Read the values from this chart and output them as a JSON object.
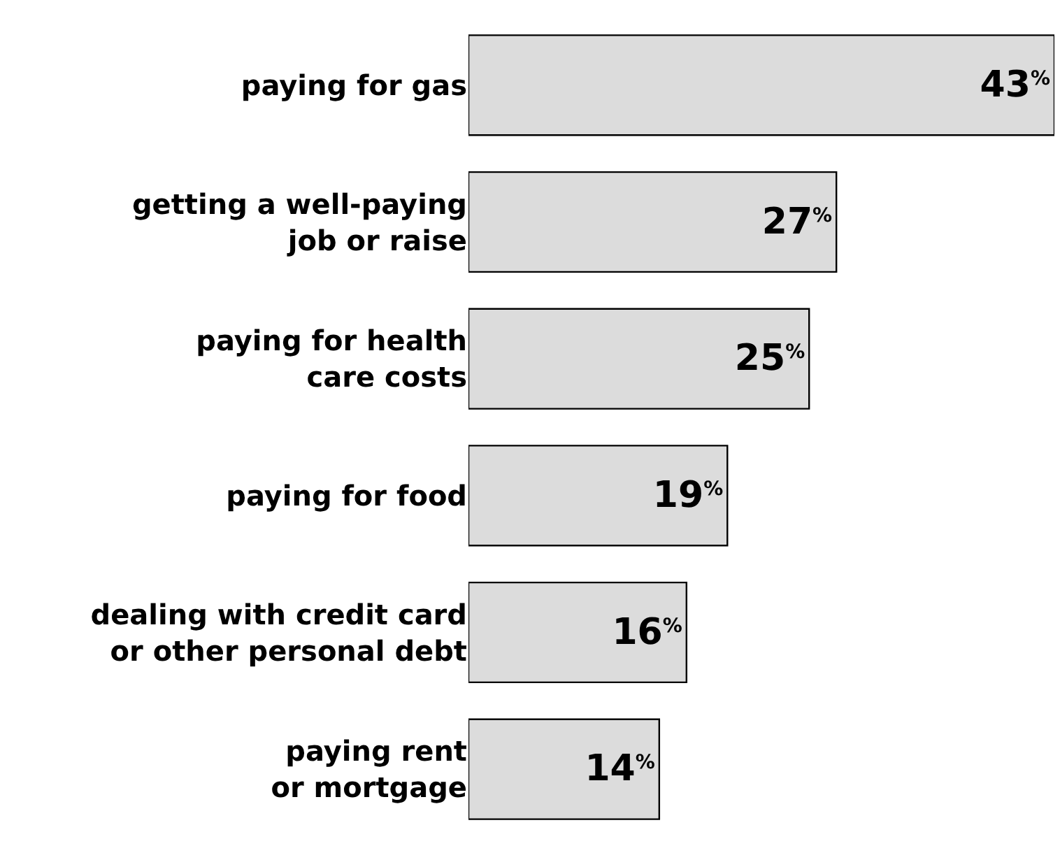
{
  "chart_data": {
    "type": "bar",
    "orientation": "horizontal",
    "categories": [
      "paying for gas",
      "getting a well-paying\njob or raise",
      "paying for health\ncare costs",
      "paying for food",
      "dealing with credit card\nor other personal debt",
      "paying rent\nor mortgage"
    ],
    "values": [
      43,
      27,
      25,
      19,
      16,
      14
    ],
    "value_labels": [
      "43$^{%}$",
      "27$^{%}$",
      "25$^{%}$",
      "19$^{%}$",
      "16$^{%}$",
      "14$^{%}$"
    ],
    "color": "#dcdcdc",
    "tick_labels": "y",
    "legend": false
  }
}
